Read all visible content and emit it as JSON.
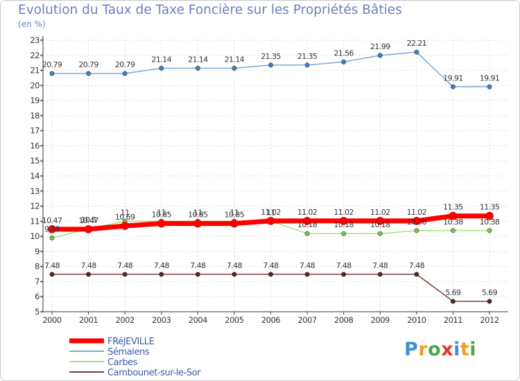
{
  "header": {
    "title": "Evolution du Taux de Taxe Foncière sur les Propriétés Bâties",
    "unit": "(en %)"
  },
  "logo": {
    "text": "Proxiti",
    "colors": [
      "#3d8fd6",
      "#f29d1b",
      "#49a844",
      "#e5352b",
      "#3d8fd6",
      "#f29d1b",
      "#49a844"
    ]
  },
  "chart_data": {
    "type": "line",
    "title": "Evolution du Taux de Taxe Foncière sur les Propriétés Bâties",
    "ylabel": "(en %)",
    "xlabel": "",
    "ylim": [
      5,
      23
    ],
    "yticks": [
      5,
      6,
      7,
      8,
      9,
      10,
      11,
      12,
      13,
      14,
      15,
      16,
      17,
      18,
      19,
      20,
      21,
      22,
      23
    ],
    "categories": [
      "2000",
      "2001",
      "2002",
      "2003",
      "2004",
      "2005",
      "2006",
      "2007",
      "2008",
      "2009",
      "2010",
      "2011",
      "2012"
    ],
    "legend_position": "bottom-left",
    "series": [
      {
        "name": "FRéJEVILLE",
        "color": "#ff0000",
        "marker": "#ff0000",
        "values": [
          10.47,
          10.47,
          10.69,
          10.85,
          10.85,
          10.85,
          11.02,
          11.02,
          11.02,
          11.02,
          11.02,
          11.35,
          11.35
        ],
        "labels": [
          "10.47",
          "10.47",
          "10.69",
          "10.85",
          "10.85",
          "10.85",
          "11.02",
          "11.02",
          "11.02",
          "11.02",
          "11.02",
          "11.35",
          "11.35"
        ]
      },
      {
        "name": "Sémalens",
        "color": "#7aa9d6",
        "marker": "#3a7fc1",
        "values": [
          20.79,
          20.79,
          20.79,
          21.14,
          21.14,
          21.14,
          21.35,
          21.35,
          21.56,
          21.99,
          22.21,
          19.91,
          19.91
        ],
        "labels": [
          "20.79",
          "20.79",
          "20.79",
          "21.14",
          "21.14",
          "21.14",
          "21.35",
          "21.35",
          "21.56",
          "21.99",
          "22.21",
          "19.91",
          "19.91"
        ]
      },
      {
        "name": "Carbes",
        "color": "#a8e07a",
        "marker": "#7cc04a",
        "values": [
          9.89,
          10.5,
          11.0,
          11.0,
          11.0,
          11.0,
          11.0,
          10.18,
          10.18,
          10.18,
          10.38,
          10.38,
          10.38
        ],
        "labels": [
          "9.89",
          "10.5",
          "11",
          "11",
          "11",
          "11",
          "11",
          "10.18",
          "10.18",
          "10.18",
          "10.38",
          "10.38",
          "10.38"
        ]
      },
      {
        "name": "Cambounet-sur-le-Sor",
        "color": "#7a3a3a",
        "marker": "#5a2020",
        "values": [
          7.48,
          7.48,
          7.48,
          7.48,
          7.48,
          7.48,
          7.48,
          7.48,
          7.48,
          7.48,
          7.48,
          5.69,
          5.69
        ],
        "labels": [
          "7.48",
          "7.48",
          "7.48",
          "7.48",
          "7.48",
          "7.48",
          "7.48",
          "7.48",
          "7.48",
          "7.48",
          "7.48",
          "5.69",
          "5.69"
        ]
      }
    ]
  }
}
